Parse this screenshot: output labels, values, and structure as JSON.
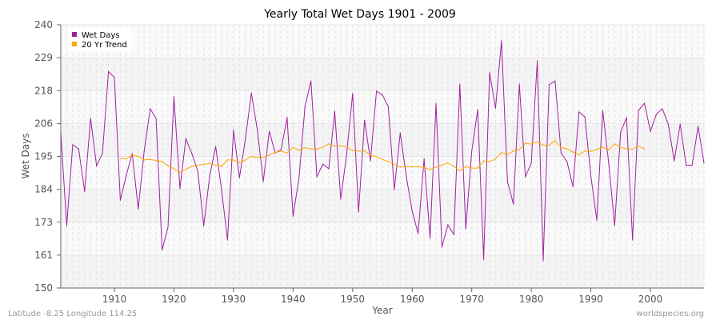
{
  "chart_data": {
    "type": "line",
    "title": "Yearly Total Wet Days 1901 - 2009",
    "xlabel": "Year",
    "ylabel": "Wet Days",
    "xlim": [
      1901,
      2009
    ],
    "ylim": [
      150,
      240
    ],
    "x_ticks": [
      "1910",
      "1920",
      "1930",
      "1940",
      "1950",
      "1960",
      "1970",
      "1980",
      "1990",
      "2000"
    ],
    "y_ticks": [
      {
        "value": 150,
        "label": "150"
      },
      {
        "value": 161.25,
        "label": "161"
      },
      {
        "value": 172.5,
        "label": "173"
      },
      {
        "value": 183.75,
        "label": "184"
      },
      {
        "value": 195,
        "label": "195"
      },
      {
        "value": 206.25,
        "label": "206"
      },
      {
        "value": 217.5,
        "label": "218"
      },
      {
        "value": 228.75,
        "label": "229"
      },
      {
        "value": 240,
        "label": "240"
      }
    ],
    "grid": true,
    "legend_position": "top-left",
    "series": [
      {
        "name": "Wet Days",
        "color": "#a020a0",
        "start_year": 1901,
        "values": [
          203,
          171.3,
          199,
          197.6,
          183,
          208,
          191.8,
          196,
          224,
          222,
          180,
          188.6,
          196,
          177,
          196.8,
          211.3,
          208,
          163,
          170.8,
          215.4,
          184,
          201,
          196,
          190,
          171.3,
          188.3,
          198.4,
          183.4,
          166.4,
          204,
          187.7,
          201,
          216.7,
          204,
          186.4,
          203.6,
          196.2,
          197.3,
          208.3,
          174.6,
          187.7,
          212,
          220.8,
          188,
          192.4,
          190.8,
          210.4,
          180.4,
          195.7,
          216.5,
          176,
          207.4,
          193.5,
          217.3,
          216,
          212,
          183.6,
          203,
          188.3,
          176.3,
          168.6,
          194.3,
          167,
          213.2,
          164,
          171.6,
          168.3,
          219.7,
          170.2,
          196.8,
          211,
          159.8,
          223.6,
          211.5,
          234.5,
          186.4,
          178.7,
          219.7,
          188,
          192.7,
          227.7,
          159.3,
          219.5,
          220.8,
          196.2,
          193.2,
          184.7,
          210.2,
          208.5,
          188.3,
          173.2,
          210.7,
          192.7,
          171.3,
          203.3,
          208.3,
          166.4,
          210.7,
          213.2,
          203.6,
          209.4,
          211.3,
          206,
          193.5,
          206,
          192,
          192,
          205.3,
          192.7
        ]
      },
      {
        "name": "20 Yr Trend",
        "color": "#ffa500",
        "start_year": 1911,
        "values": [
          194.3,
          194.2,
          195.5,
          195,
          193.8,
          194,
          193.6,
          193.2,
          191.8,
          190.8,
          189.5,
          190.6,
          191.6,
          192,
          192.3,
          192.6,
          192,
          191.6,
          193.8,
          193.8,
          192.8,
          193.8,
          195,
          194.6,
          194.7,
          195.5,
          196.4,
          196.8,
          196.2,
          198.1,
          197,
          198,
          197.6,
          197.5,
          198.1,
          199.3,
          198.5,
          198.6,
          198.2,
          197,
          196.8,
          196.9,
          195.4,
          194.8,
          194,
          193.2,
          192.3,
          191.3,
          191.6,
          191.4,
          191.5,
          191.2,
          190.5,
          191.3,
          192,
          192.8,
          191.6,
          190,
          191.5,
          191,
          191,
          193.5,
          193.2,
          194.2,
          196.3,
          195.7,
          196.8,
          197.3,
          199.5,
          199.2,
          200,
          198.8,
          198.8,
          200.4,
          198,
          197.6,
          196.5,
          195.6,
          196.8,
          196.7,
          197.3,
          198.2,
          197.2,
          199.3,
          198.1,
          197.6,
          197.5,
          198.5,
          197.6
        ]
      }
    ]
  },
  "footer": {
    "location": "Latitude -8.25 Longitude 114.25",
    "source": "worldspecies.org"
  }
}
